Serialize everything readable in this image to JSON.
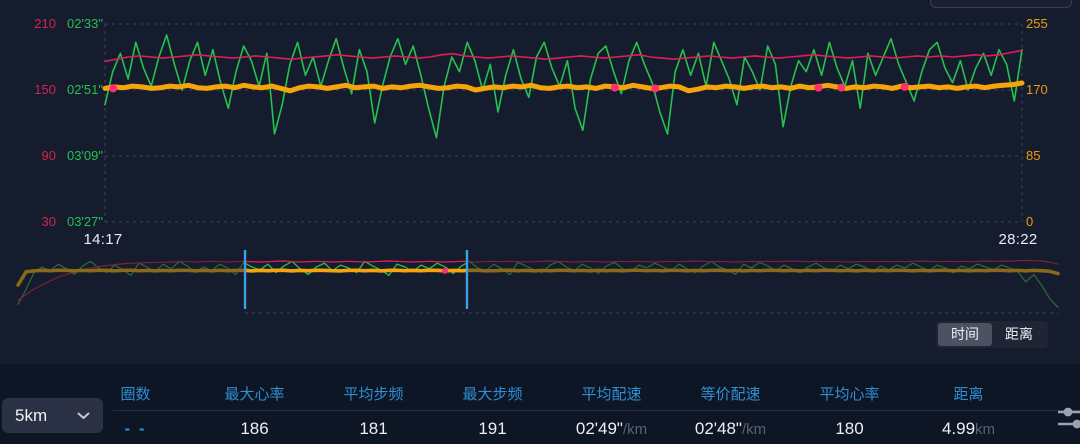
{
  "chart_data": [
    {
      "id": "main",
      "type": "line",
      "x_axis": {
        "start_label": "14:17",
        "end_label": "28:22"
      },
      "axes": {
        "heart_rate": {
          "ticks": [
            "210",
            "150",
            "90",
            "30"
          ],
          "color": "#d42350"
        },
        "pace": {
          "ticks": [
            "02'33\"",
            "02'51\"",
            "03'09\"",
            "03'27\""
          ],
          "color": "#27c04d"
        },
        "cadence": {
          "ticks": [
            "255",
            "170",
            "85",
            "0"
          ],
          "color": "#ef9a10"
        }
      },
      "grid": true,
      "series": [
        {
          "name": "pace",
          "color": "#25c24d",
          "width": 1.6,
          "ylim": [
            153,
            207
          ],
          "direction": "down",
          "values": [
            175,
            166,
            161,
            168,
            158,
            165,
            170,
            162,
            156,
            164,
            171,
            163,
            158,
            167,
            160,
            169,
            176,
            166,
            159,
            163,
            170,
            161,
            183,
            175,
            164,
            158,
            167,
            162,
            170,
            163,
            157,
            165,
            172,
            160,
            166,
            180,
            170,
            162,
            157,
            164,
            159,
            167,
            176,
            184,
            170,
            162,
            166,
            158,
            163,
            171,
            164,
            177,
            167,
            160,
            168,
            173,
            162,
            158,
            165,
            170,
            163,
            176,
            182,
            168,
            161,
            159,
            166,
            172,
            163,
            158,
            164,
            169,
            177,
            183,
            166,
            160,
            167,
            161,
            170,
            158,
            163,
            168,
            175,
            162,
            166,
            171,
            159,
            164,
            181,
            170,
            163,
            166,
            160,
            167,
            158,
            165,
            170,
            163,
            176,
            161,
            167,
            162,
            157,
            164,
            169,
            174,
            166,
            160,
            158,
            165,
            169,
            163,
            171,
            165,
            161,
            167,
            160,
            164,
            174,
            160
          ]
        },
        {
          "name": "heart_rate",
          "color": "#e01e55",
          "width": 1.6,
          "ylim": [
            30,
            210
          ],
          "direction": "up",
          "values": [
            176,
            178,
            180,
            181,
            180,
            179,
            180,
            181,
            182,
            181,
            180,
            179,
            180,
            181,
            180,
            179,
            178,
            179,
            180,
            181,
            182,
            181,
            180,
            179,
            180,
            181,
            180,
            179,
            180,
            182,
            183,
            181,
            180,
            179,
            180,
            181,
            180,
            179,
            178,
            179,
            180,
            181,
            180,
            179,
            180,
            181,
            182,
            180,
            179,
            178,
            179,
            180,
            181,
            180,
            179,
            180,
            181,
            180,
            179,
            180,
            181,
            182,
            181,
            180,
            179,
            180,
            181,
            180,
            179,
            180,
            181,
            180,
            181,
            180,
            181,
            182,
            181,
            182,
            184,
            186
          ]
        },
        {
          "name": "cadence",
          "color": "#f5a50a",
          "width": 5,
          "ylim": [
            0,
            255
          ],
          "direction": "up",
          "values": [
            172,
            174,
            173,
            175,
            174,
            172,
            173,
            175,
            174,
            176,
            173,
            172,
            174,
            175,
            173,
            176,
            174,
            173,
            175,
            172,
            169,
            173,
            175,
            174,
            172,
            174,
            176,
            173,
            174,
            175,
            172,
            174,
            173,
            175,
            176,
            174,
            172,
            173,
            175,
            174,
            170,
            172,
            174,
            173,
            175,
            174,
            176,
            173,
            172,
            174,
            175,
            173,
            174,
            172,
            175,
            174,
            173,
            176,
            174,
            172,
            173,
            175,
            174,
            169,
            171,
            174,
            173,
            175,
            174,
            172,
            174,
            175,
            173,
            174,
            172,
            175,
            173,
            174,
            176,
            174,
            172,
            174,
            173,
            175,
            174,
            172,
            175,
            173,
            174,
            175,
            173,
            174,
            172,
            174,
            175,
            173,
            175,
            176,
            177,
            179
          ]
        }
      ],
      "markers": {
        "color": "#ff2f6d",
        "r": 4,
        "points": [
          {
            "xf": 0.009,
            "v": 172
          },
          {
            "xf": 0.556,
            "v": 173
          },
          {
            "xf": 0.6,
            "v": 172
          },
          {
            "xf": 0.778,
            "v": 173
          },
          {
            "xf": 0.803,
            "v": 173
          },
          {
            "xf": 0.872,
            "v": 174
          }
        ]
      }
    },
    {
      "id": "navigator",
      "type": "line",
      "selection": {
        "start_frac": 0.2183,
        "end_frac": 0.4317,
        "handle_color": "#3aa0e8"
      },
      "series": [
        {
          "name": "pace",
          "color": "#25c24d",
          "dim_color": "#2f6b38",
          "width": 1.2,
          "ylim": [
            150,
            212
          ],
          "direction": "down",
          "values": [
            206,
            190,
            172,
            166,
            170,
            163,
            168,
            174,
            165,
            160,
            167,
            172,
            164,
            169,
            175,
            162,
            166,
            171,
            163,
            168,
            160,
            165,
            172,
            166,
            170,
            163,
            167,
            174,
            161,
            166,
            169,
            163,
            172,
            165,
            160,
            168,
            174,
            166,
            162,
            170,
            164,
            167,
            172,
            160,
            165,
            169,
            175,
            163,
            166,
            171,
            164,
            168,
            162,
            166,
            173,
            165,
            160,
            167,
            170,
            163,
            168,
            174,
            161,
            165,
            169,
            172,
            164,
            160,
            166,
            170,
            163,
            167,
            173,
            165,
            161,
            168,
            171,
            164,
            167,
            162,
            166,
            170,
            163,
            168,
            172,
            165,
            160,
            166,
            169,
            174,
            163,
            167,
            161,
            165,
            170,
            164,
            168,
            172,
            166,
            162,
            167,
            170,
            164,
            168,
            163,
            166,
            171,
            165,
            169,
            164,
            167,
            162,
            166,
            170,
            164,
            167,
            172,
            165,
            168,
            163,
            166,
            169,
            164,
            167,
            171,
            182,
            174,
            186,
            200,
            209
          ]
        },
        {
          "name": "heart_rate",
          "color": "#e01e55",
          "dim_color": "#7d2138",
          "width": 1.2,
          "ylim": [
            30,
            210
          ],
          "direction": "up",
          "values": [
            60,
            78,
            95,
            108,
            120,
            132,
            140,
            148,
            155,
            160,
            165,
            168,
            171,
            173,
            175,
            176,
            177,
            178,
            178,
            179,
            180,
            180,
            179,
            180,
            181,
            180,
            179,
            180,
            181,
            180,
            179,
            180,
            181,
            182,
            180,
            179,
            180,
            181,
            180,
            179,
            180,
            181,
            180,
            179,
            180,
            181,
            182,
            181,
            180,
            179,
            180,
            181,
            180,
            179,
            180,
            181,
            180,
            179,
            180,
            181,
            180,
            181,
            180,
            179,
            180,
            181,
            182,
            181,
            180,
            179,
            180,
            181,
            180,
            179,
            180,
            181,
            180,
            181,
            180,
            179,
            180,
            181,
            180,
            181,
            182,
            181,
            180,
            181,
            180,
            179,
            180,
            181,
            180,
            181,
            180,
            181,
            182,
            181,
            180,
            181,
            180,
            181,
            180,
            179,
            180,
            181,
            180,
            181,
            180,
            181,
            180,
            181,
            182,
            181,
            180,
            181,
            180,
            181,
            180,
            181,
            182,
            181,
            182,
            181,
            183,
            184,
            183,
            182,
            178,
            172
          ]
        },
        {
          "name": "cadence",
          "color": "#f5a50a",
          "dim_color": "#8a6a1a",
          "width": 3.5,
          "ylim": [
            0,
            255
          ],
          "direction": "up",
          "values": [
            110,
            168,
            172,
            174,
            173,
            175,
            174,
            172,
            174,
            173,
            175,
            174,
            172,
            174,
            175,
            173,
            174,
            172,
            174,
            173,
            175,
            174,
            173,
            174,
            172,
            175,
            173,
            174,
            175,
            172,
            174,
            173,
            175,
            174,
            172,
            174,
            173,
            175,
            174,
            173,
            172,
            174,
            175,
            173,
            174,
            172,
            174,
            175,
            173,
            174,
            173,
            175,
            174,
            172,
            174,
            173,
            175,
            174,
            172,
            173,
            174,
            175,
            173,
            174,
            172,
            174,
            173,
            175,
            174,
            173,
            174,
            172,
            175,
            173,
            174,
            172,
            174,
            175,
            173,
            174,
            173,
            175,
            174,
            172,
            174,
            173,
            174,
            175,
            173,
            174,
            172,
            174,
            173,
            175,
            174,
            173,
            174,
            172,
            174,
            173,
            175,
            174,
            173,
            174,
            172,
            175,
            173,
            174,
            173,
            175,
            174,
            172,
            174,
            173,
            174,
            175,
            173,
            174,
            172,
            174,
            173,
            175,
            174,
            173,
            174,
            172,
            174,
            173,
            170,
            160
          ]
        }
      ],
      "markers": {
        "color": "#ff2f6d",
        "r": 3,
        "points": [
          {
            "xf": 0.4106,
            "v": 172
          }
        ]
      }
    }
  ],
  "toggle": {
    "time_label": "时间",
    "distance_label": "距离",
    "selected": "时间"
  },
  "dropdown": {
    "value": "5km"
  },
  "table": {
    "columns": [
      "圈数",
      "最大心率",
      "平均步频",
      "最大步频",
      "平均配速",
      "等价配速",
      "平均心率",
      "距离"
    ],
    "row": {
      "laps": "- -",
      "max_heart_rate": "186",
      "avg_cadence": "181",
      "max_cadence": "191",
      "avg_pace": "02'49\"",
      "avg_pace_unit": "/km",
      "eq_pace": "02'48\"",
      "eq_pace_unit": "/km",
      "avg_heart_rate": "180",
      "distance": "4.99",
      "distance_unit": "km"
    }
  }
}
